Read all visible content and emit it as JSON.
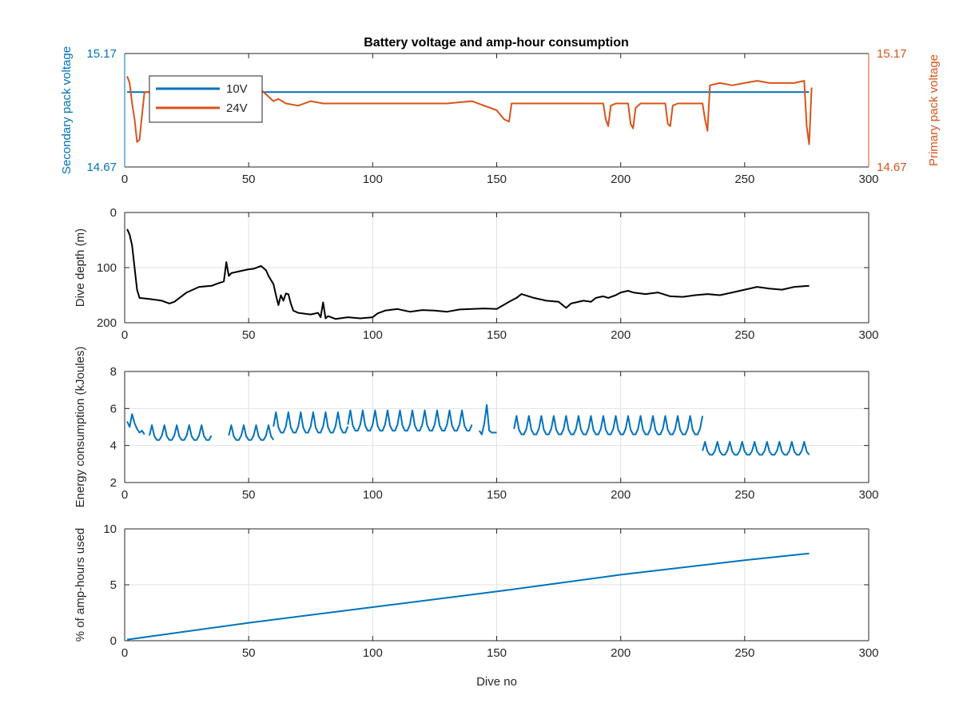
{
  "figure": {
    "title": "Battery voltage and amp-hour consumption"
  },
  "chart_data": [
    {
      "type": "line",
      "id": "voltage",
      "title": "Battery voltage and amp-hour consumption",
      "xlabel": "",
      "ylabel_left": "Secondary pack voltage",
      "ylabel_right": "Primary pack voltage",
      "xlim": [
        0,
        300
      ],
      "xticks": [
        0,
        50,
        100,
        150,
        200,
        250,
        300
      ],
      "ylim": [
        14.67,
        15.17
      ],
      "yticks": [
        "14.67",
        "15.17"
      ],
      "grid": false,
      "legend_position": "top-left",
      "colors": {
        "10V": "#0072BD",
        "24V": "#D95319",
        "left_axis": "#0072BD",
        "right_axis": "#D95319"
      },
      "series": [
        {
          "name": "10V",
          "axis": "left",
          "x": [
            1,
            276
          ],
          "y": [
            15.0,
            15.0
          ]
        },
        {
          "name": "24V",
          "axis": "right",
          "x": [
            1,
            2,
            3,
            4,
            5,
            6,
            7,
            8,
            10,
            15,
            20,
            25,
            30,
            35,
            40,
            45,
            50,
            53,
            55,
            57,
            60,
            62,
            65,
            70,
            75,
            80,
            90,
            100,
            110,
            120,
            130,
            140,
            150,
            153,
            155,
            156,
            158,
            160,
            170,
            180,
            190,
            193,
            194,
            195,
            196,
            198,
            203,
            204,
            205,
            206,
            208,
            218,
            219,
            220,
            221,
            223,
            233,
            234,
            235,
            236,
            240,
            245,
            250,
            255,
            260,
            265,
            270,
            274,
            275,
            276,
            277
          ],
          "y": [
            15.07,
            15.04,
            14.95,
            14.88,
            14.78,
            14.79,
            14.9,
            15.0,
            15.0,
            15.0,
            15.0,
            15.0,
            15.0,
            15.0,
            15.0,
            15.0,
            15.0,
            15.0,
            15.01,
            14.99,
            14.96,
            14.97,
            14.95,
            14.94,
            14.96,
            14.95,
            14.95,
            14.95,
            14.95,
            14.95,
            14.95,
            14.96,
            14.92,
            14.88,
            14.87,
            14.95,
            14.95,
            14.95,
            14.95,
            14.95,
            14.95,
            14.95,
            14.88,
            14.85,
            14.94,
            14.95,
            14.95,
            14.86,
            14.84,
            14.93,
            14.95,
            14.95,
            14.86,
            14.85,
            14.94,
            14.95,
            14.95,
            14.88,
            14.83,
            15.03,
            15.04,
            15.03,
            15.04,
            15.05,
            15.04,
            15.04,
            15.04,
            15.05,
            14.85,
            14.77,
            15.02
          ]
        }
      ]
    },
    {
      "type": "line",
      "id": "depth",
      "title": "",
      "xlabel": "",
      "ylabel": "Dive depth (m)",
      "xlim": [
        0,
        300
      ],
      "xticks": [
        0,
        50,
        100,
        150,
        200,
        250,
        300
      ],
      "ylim": [
        0,
        200
      ],
      "y_reversed": true,
      "yticks": [
        0,
        100,
        200
      ],
      "grid": true,
      "colors": {
        "line": "#000000"
      },
      "series": [
        {
          "name": "",
          "x": [
            1,
            2,
            3,
            4,
            5,
            6,
            10,
            15,
            18,
            20,
            25,
            30,
            35,
            38,
            40,
            41,
            42,
            43,
            45,
            48,
            50,
            52,
            55,
            57,
            58,
            60,
            61,
            62,
            63,
            64,
            65,
            66,
            67,
            68,
            70,
            75,
            78,
            79,
            80,
            81,
            82,
            85,
            90,
            95,
            100,
            102,
            105,
            110,
            115,
            120,
            125,
            130,
            135,
            140,
            145,
            150,
            155,
            158,
            160,
            165,
            170,
            175,
            178,
            180,
            185,
            188,
            190,
            193,
            195,
            198,
            200,
            203,
            205,
            210,
            215,
            220,
            225,
            230,
            235,
            240,
            245,
            250,
            255,
            260,
            265,
            270,
            276
          ],
          "y": [
            30,
            40,
            60,
            100,
            140,
            155,
            157,
            160,
            165,
            162,
            145,
            135,
            133,
            128,
            125,
            90,
            115,
            110,
            108,
            105,
            103,
            102,
            97,
            105,
            115,
            130,
            150,
            168,
            150,
            160,
            147,
            148,
            165,
            178,
            182,
            185,
            182,
            190,
            163,
            192,
            188,
            193,
            190,
            192,
            190,
            183,
            178,
            175,
            180,
            177,
            178,
            180,
            176,
            175,
            174,
            175,
            162,
            155,
            148,
            155,
            160,
            162,
            173,
            165,
            160,
            162,
            155,
            152,
            155,
            150,
            145,
            142,
            145,
            148,
            145,
            152,
            153,
            150,
            148,
            150,
            145,
            140,
            135,
            138,
            140,
            135,
            133
          ]
        }
      ]
    },
    {
      "type": "line",
      "id": "energy",
      "title": "",
      "xlabel": "",
      "ylabel": "Energy consumption (kJoules)",
      "xlim": [
        0,
        300
      ],
      "xticks": [
        0,
        50,
        100,
        150,
        200,
        250,
        300
      ],
      "ylim": [
        2,
        8
      ],
      "yticks": [
        2,
        4,
        6,
        8
      ],
      "grid": true,
      "colors": {
        "line": "#0072BD"
      },
      "segments": [
        {
          "x_start": 1,
          "x_end": 8,
          "y": [
            5.3,
            5.0,
            5.7,
            5.2,
            4.9,
            4.7,
            4.8,
            4.6
          ]
        },
        {
          "x_start": 10,
          "x_end": 35,
          "period": 5,
          "base": 4.3,
          "peak": 5.1
        },
        {
          "x_start": 42,
          "x_end": 60,
          "period": 5,
          "base": 4.3,
          "peak": 5.1
        },
        {
          "x_start": 60,
          "x_end": 90,
          "period": 5,
          "base": 4.7,
          "peak": 5.8
        },
        {
          "x_start": 90,
          "x_end": 140,
          "period": 5,
          "base": 4.8,
          "peak": 5.9
        },
        {
          "x_start": 143,
          "x_end": 150,
          "y": [
            4.8,
            4.6,
            5.2,
            6.2,
            4.8,
            4.7,
            4.7,
            4.7
          ]
        },
        {
          "x_start": 157,
          "x_end": 233,
          "period": 5,
          "base": 4.6,
          "peak": 5.6
        },
        {
          "x_start": 233,
          "x_end": 276,
          "period": 5,
          "base": 3.5,
          "peak": 4.2
        }
      ]
    },
    {
      "type": "line",
      "id": "amphours",
      "title": "",
      "xlabel": "Dive no",
      "ylabel": "% of amp-hours used",
      "xlim": [
        0,
        300
      ],
      "xticks": [
        0,
        50,
        100,
        150,
        200,
        250,
        300
      ],
      "ylim": [
        0,
        10
      ],
      "yticks": [
        0,
        5,
        10
      ],
      "grid": true,
      "colors": {
        "line": "#0072BD"
      },
      "series": [
        {
          "name": "",
          "x": [
            1,
            50,
            100,
            150,
            200,
            250,
            276
          ],
          "y": [
            0.1,
            1.6,
            3.0,
            4.4,
            5.9,
            7.2,
            7.8
          ]
        }
      ]
    }
  ]
}
